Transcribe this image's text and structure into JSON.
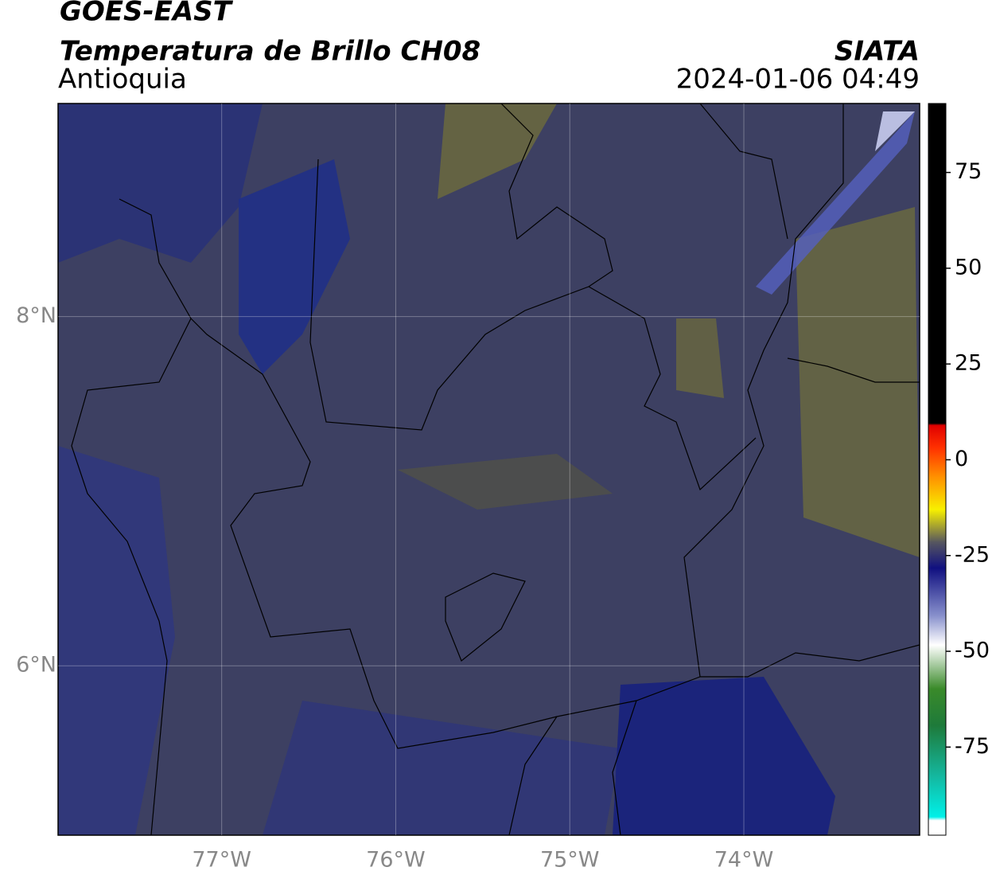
{
  "chart_data": {
    "type": "map",
    "title": "GOES-EAST",
    "subtitle": "Temperatura de Brillo CH08",
    "region": "Antioquia",
    "source": "SIATA",
    "datetime": "2024-01-06 04:49",
    "xlim": [
      -77.94,
      -72.99
    ],
    "ylim": [
      5.03,
      9.22
    ],
    "xticks": [
      {
        "value": -77,
        "label": "77°W"
      },
      {
        "value": -76,
        "label": "76°W"
      },
      {
        "value": -75,
        "label": "75°W"
      },
      {
        "value": -74,
        "label": "74°W"
      }
    ],
    "yticks": [
      {
        "value": 8,
        "label": "8°N"
      },
      {
        "value": 6,
        "label": "6°N"
      }
    ],
    "grid": true,
    "colorbar": {
      "lim": [
        -98,
        93
      ],
      "ticks": [
        75,
        50,
        25,
        0,
        -25,
        -50,
        -75
      ]
    }
  }
}
